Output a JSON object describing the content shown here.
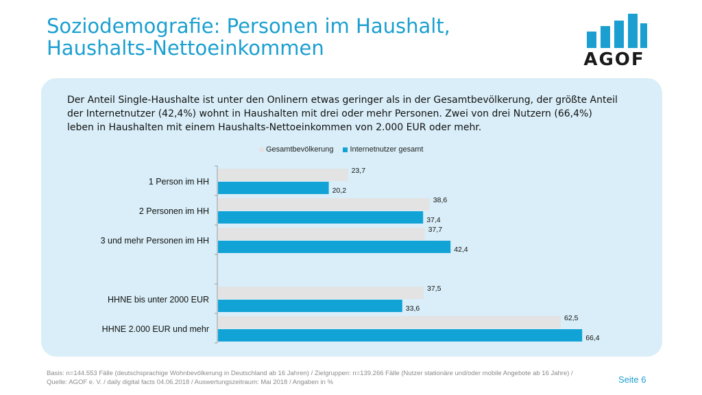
{
  "slide": {
    "title_line1": "Soziodemografie: Personen im Haushalt,",
    "title_line2": "Haushalts-Nettoeinkommen",
    "intro": "Der Anteil Single-Haushalte ist unter den Onlinern etwas geringer als in der Gesamtbevölkerung, der größte Anteil der Internetnutzer (42,4%) wohnt in Haushalten mit drei oder mehr Personen. Zwei von drei Nutzern (66,4%) leben in Haushalten mit einem Haushalts-Nettoeinkommen von 2.000 EUR oder mehr.",
    "footer": "Basis: n=144.553 Fälle (deutschsprachige Wohnbevölkerung in Deutschland ab 16 Jahren) / Zielgruppen: n=139.266 Fälle (Nutzer stationäre und/oder mobile Angebote ab 16 Jahre) / Quelle: AGOF e. V. / daily digital facts 04.06.2018 / Auswertungszeitraum: Mai 2018 / Angaben in %",
    "page_label": "Seite 6"
  },
  "logo": {
    "text": "AGOF",
    "bar_color": "#1a9fd0"
  },
  "colors": {
    "accent": "#1a9fd0",
    "grey_series": "#e3e3e3",
    "blue_series": "#12a3d6",
    "panel": "#d9eef8"
  },
  "chart_data": {
    "type": "bar",
    "orientation": "horizontal",
    "categories": [
      "1 Person im HH",
      "2 Personen im HH",
      "3 und mehr Personen im HH",
      "",
      "HHNE bis unter 2000 EUR",
      "HHNE 2.000 EUR und mehr"
    ],
    "series": [
      {
        "name": "Gesamtbevölkerung",
        "color": "#e3e3e3",
        "values": [
          23.7,
          38.6,
          37.7,
          null,
          37.5,
          62.5
        ],
        "labels": [
          "23,7",
          "38,6",
          "37,7",
          "",
          "37,5",
          "62,5"
        ]
      },
      {
        "name": "Internetnutzer gesamt",
        "color": "#12a3d6",
        "values": [
          20.2,
          37.4,
          42.4,
          null,
          33.6,
          66.4
        ],
        "labels": [
          "20,2",
          "37,4",
          "42,4",
          "",
          "33,6",
          "66,4"
        ]
      }
    ],
    "legend_position": "top",
    "grid": false
  }
}
